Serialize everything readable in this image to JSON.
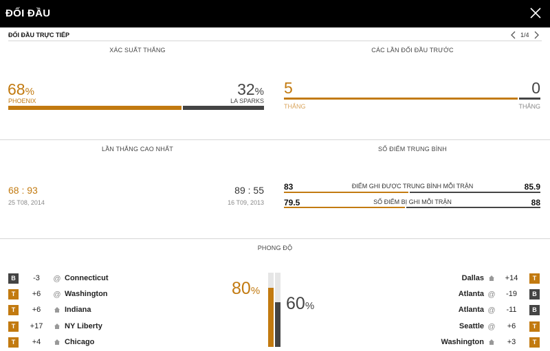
{
  "header": {
    "title": "ĐỐI ĐẦU",
    "close_icon": "close-icon"
  },
  "subheader": {
    "title": "ĐỐI ĐẦU TRỰC TIẾP",
    "page": "1/4"
  },
  "colors": {
    "home": "#c27a10",
    "away": "#444444"
  },
  "win_probability": {
    "title": "XÁC SUẤT THẮNG",
    "home": {
      "value": "68",
      "symbol": "%",
      "team": "PHOENIX",
      "fraction": 0.68
    },
    "away": {
      "value": "32",
      "symbol": "%",
      "team": "LA SPARKS",
      "fraction": 0.32
    }
  },
  "previous_meetings": {
    "title": "CÁC LẦN ĐỐI ĐẦU TRƯỚC",
    "home": {
      "wins": "5",
      "label": "THẮNG"
    },
    "away": {
      "wins": "0",
      "label": "THẮNG"
    }
  },
  "biggest_win": {
    "title": "LẦN THẮNG CAO NHẤT",
    "home": {
      "score_a": "68",
      "sep": ":",
      "score_b": "93",
      "date": "25 T08, 2014"
    },
    "away": {
      "score_a": "89",
      "sep": ":",
      "score_b": "55",
      "date": "16 T09, 2013"
    }
  },
  "average_points": {
    "title": "SỐ ĐIỂM TRUNG BÌNH",
    "rows": [
      {
        "home": "83",
        "label": "ĐIỂM GHI ĐƯỢC TRUNG BÌNH MỖI TRẬN",
        "away": "85.9"
      },
      {
        "home": "79.5",
        "label": "SỐ ĐIỂM BỊ GHI MỖI TRẬN",
        "away": "88"
      }
    ]
  },
  "form": {
    "title": "PHONG ĐỘ",
    "home": {
      "pct": "80",
      "symbol": "%",
      "fraction": 0.8,
      "games": [
        {
          "result": "B",
          "diff": "-3",
          "loc": "@",
          "team": "Connecticut"
        },
        {
          "result": "T",
          "diff": "+6",
          "loc": "@",
          "team": "Washington"
        },
        {
          "result": "T",
          "diff": "+6",
          "loc": "home",
          "team": "Indiana"
        },
        {
          "result": "T",
          "diff": "+17",
          "loc": "home",
          "team": "NY Liberty"
        },
        {
          "result": "T",
          "diff": "+4",
          "loc": "home",
          "team": "Chicago"
        }
      ]
    },
    "away": {
      "pct": "60",
      "symbol": "%",
      "fraction": 0.6,
      "games": [
        {
          "result": "T",
          "diff": "+14",
          "loc": "home",
          "team": "Dallas"
        },
        {
          "result": "B",
          "diff": "-19",
          "loc": "@",
          "team": "Atlanta"
        },
        {
          "result": "B",
          "diff": "-11",
          "loc": "@",
          "team": "Atlanta"
        },
        {
          "result": "T",
          "diff": "+6",
          "loc": "@",
          "team": "Seattle"
        },
        {
          "result": "T",
          "diff": "+3",
          "loc": "home",
          "team": "Washington"
        }
      ]
    }
  }
}
